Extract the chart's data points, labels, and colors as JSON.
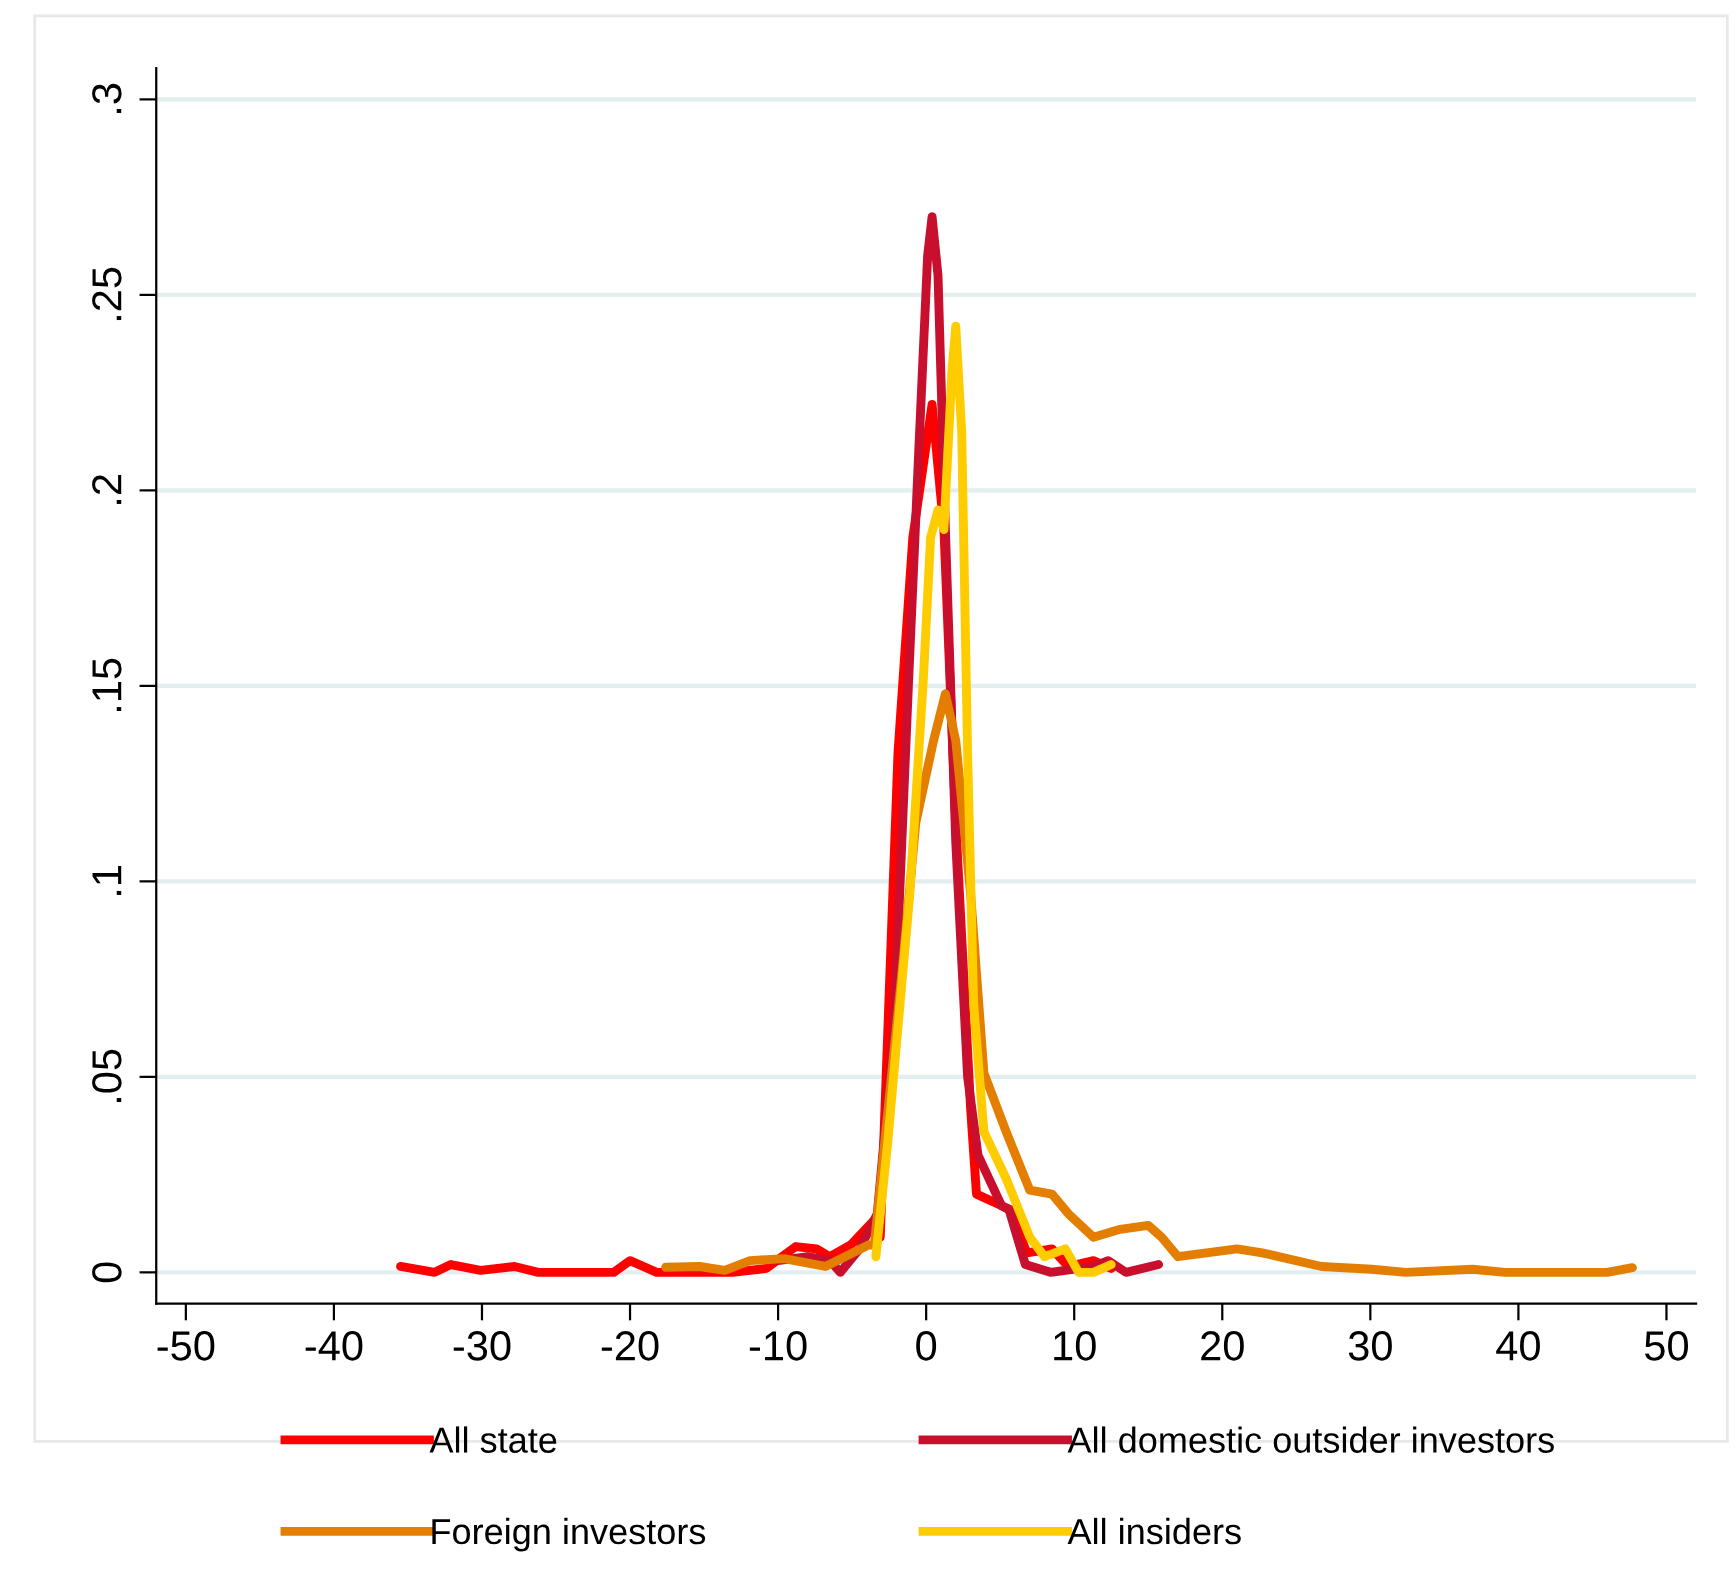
{
  "chart_data": {
    "type": "line",
    "xlim": [
      -52,
      52
    ],
    "ylim": [
      -0.008,
      0.308
    ],
    "xticks": [
      -50,
      -40,
      -30,
      -20,
      -10,
      0,
      10,
      20,
      30,
      40,
      50
    ],
    "yticks": [
      {
        "value": 0,
        "label": "0"
      },
      {
        "value": 0.05,
        "label": ".05"
      },
      {
        "value": 0.1,
        "label": ".1"
      },
      {
        "value": 0.15,
        "label": ".15"
      },
      {
        "value": 0.2,
        "label": ".2"
      },
      {
        "value": 0.25,
        "label": ".25"
      },
      {
        "value": 0.3,
        "label": ".3"
      }
    ],
    "grid": "y",
    "legend": "bottom",
    "marker": "none",
    "line_style": "solid",
    "series": [
      {
        "name": "All state",
        "color": "#ff0000",
        "x": [
          -35.5,
          -33.2,
          -32.1,
          -30.1,
          -27.8,
          -26.2,
          -21.1,
          -20,
          -18.2,
          -13.1,
          -10.8,
          -8.8,
          -7.4,
          -6.5,
          -5.1,
          -3.6,
          -3.1,
          -1.9,
          -0.9,
          0.4,
          1.2,
          2.0,
          3.0,
          3.4,
          5.7,
          6.8,
          8.5,
          9.6,
          11.3,
          12.5
        ],
        "values": [
          0.0015,
          0,
          0.002,
          0.0005,
          0.0015,
          0,
          0,
          0.003,
          0,
          0,
          0.001,
          0.0066,
          0.006,
          0.004,
          0.007,
          0.013,
          0.009,
          0.133,
          0.188,
          0.222,
          0.19,
          0.115,
          0.042,
          0.02,
          0.016,
          0.005,
          0.006,
          0.0015,
          0.003,
          0.001
        ]
      },
      {
        "name": "All domestic outsider investors",
        "color": "#c8102e",
        "x": [
          -10,
          -8,
          -6.5,
          -5.8,
          -4.5,
          -3.3,
          -2.2,
          -1.2,
          -0.5,
          0.1,
          0.4,
          0.8,
          1.3,
          2.0,
          2.8,
          3.5,
          5.1,
          5.6,
          6.7,
          8.4,
          11.3,
          12.3,
          13.5,
          15.7
        ],
        "values": [
          0.003,
          0.004,
          0.003,
          0,
          0.006,
          0.015,
          0.06,
          0.15,
          0.21,
          0.26,
          0.27,
          0.255,
          0.19,
          0.11,
          0.05,
          0.03,
          0.017,
          0.016,
          0.002,
          0,
          0.0015,
          0.003,
          0,
          0.002
        ]
      },
      {
        "name": "Foreign investors",
        "color": "#e37e00",
        "x": [
          -17.6,
          -15.3,
          -13.6,
          -11.9,
          -9.6,
          -6.8,
          -3.9,
          -3.5,
          -1.6,
          -0.7,
          0.5,
          1.3,
          2.0,
          3.0,
          3.9,
          5.4,
          7.0,
          8.5,
          9.6,
          11.3,
          13.1,
          15.0,
          15.9,
          17.0,
          21.0,
          22.7,
          26.7,
          30.1,
          32.4,
          36.9,
          39.1,
          46,
          47.7
        ],
        "values": [
          0.0013,
          0.0015,
          0.0005,
          0.003,
          0.0035,
          0.0015,
          0.007,
          0.007,
          0.078,
          0.115,
          0.136,
          0.148,
          0.136,
          0.097,
          0.051,
          0.036,
          0.021,
          0.02,
          0.015,
          0.009,
          0.011,
          0.012,
          0.009,
          0.004,
          0.006,
          0.005,
          0.0015,
          0.0008,
          0,
          0.0008,
          0,
          0,
          0.0012
        ]
      },
      {
        "name": "All insiders",
        "color": "#ffcc00",
        "x": [
          -3.4,
          -2.6,
          -1.1,
          -0.2,
          0.3,
          0.8,
          1.2,
          1.75,
          2.0,
          2.4,
          2.8,
          3.2,
          3.9,
          5.4,
          7.0,
          8.0,
          9.4,
          10.3,
          11.3,
          12.5
        ],
        "values": [
          0.004,
          0.033,
          0.097,
          0.151,
          0.188,
          0.195,
          0.19,
          0.231,
          0.242,
          0.215,
          0.133,
          0.069,
          0.036,
          0.024,
          0.009,
          0.004,
          0.006,
          0,
          0,
          0.002
        ]
      }
    ]
  }
}
